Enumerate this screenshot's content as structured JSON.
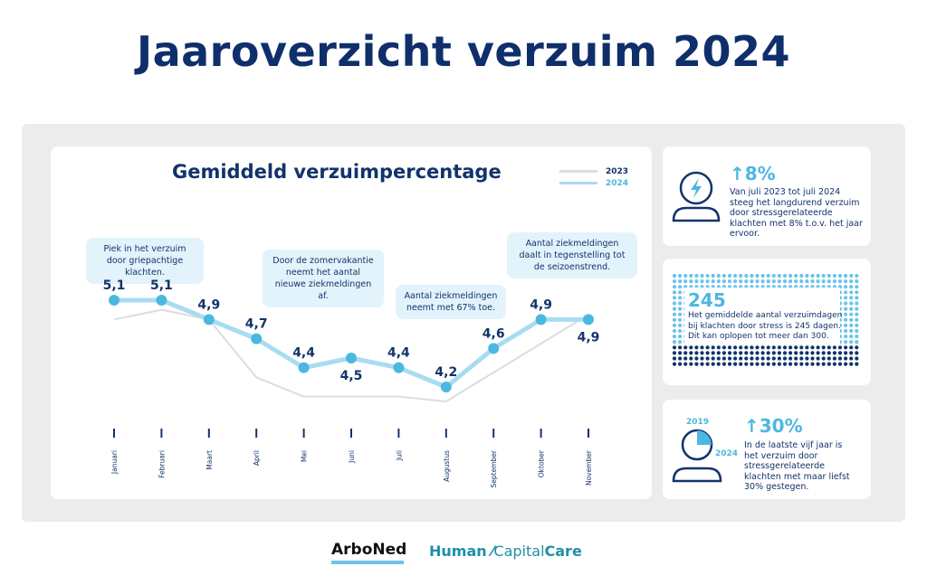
{
  "title": "Jaaroverzicht verzuim 2024",
  "chart_data": {
    "type": "line",
    "title": "Gemiddeld verzuimpercentage",
    "categories": [
      "Januari",
      "Februari",
      "Maart",
      "April",
      "Mei",
      "Juni",
      "Juli",
      "Augustus",
      "September",
      "Oktober",
      "November"
    ],
    "series": [
      {
        "name": "2023",
        "values": [
          4.9,
          5.0,
          4.9,
          4.3,
          4.1,
          4.1,
          4.1,
          4.05,
          4.35,
          4.65,
          4.95
        ],
        "color": "#dcdde3"
      },
      {
        "name": "2024",
        "values": [
          5.1,
          5.1,
          4.9,
          4.7,
          4.4,
          4.5,
          4.4,
          4.2,
          4.6,
          4.9,
          4.9
        ],
        "color": "#a9dcf2"
      }
    ],
    "value_labels": [
      "5,1",
      "5,1",
      "4,9",
      "4,7",
      "4,4",
      "4,5",
      "4,4",
      "4,2",
      "4,6",
      "4,9",
      "4,9"
    ],
    "ylim": [
      3.9,
      5.4
    ],
    "annotations": [
      "Piek in het verzuim door griepachtige klachten.",
      "Door de zomervakantie neemt het aantal nieuwe ziekmeldingen af.",
      "Aantal ziekmeldingen neemt met 67% toe.",
      "Aantal ziekmeldingen daalt in tegenstelling tot de seizoenstrend."
    ],
    "legend_position": "top-right"
  },
  "stats": [
    {
      "value": "8%",
      "text": "Van juli 2023 tot juli 2024 steeg het langdurend verzuim door stressgerelateerde klachten met 8% t.o.v. het jaar ervoor.",
      "icon": "stress-person-icon"
    },
    {
      "value": "245",
      "text": "Het gemiddelde aantal verzuimdagen bij klachten door stress is 245 dagen. Dit kan oplopen tot meer dan 300.",
      "icon": "dots-grid-icon"
    },
    {
      "value": "30%",
      "text": "In de laatste vijf jaar is het verzuim door stressgerelateerde klachten met maar liefst 30% gestegen.",
      "icon": "person-pie-icon",
      "year_start": "2019",
      "year_end": "2024"
    }
  ],
  "logos": {
    "arboned": "ArboNed",
    "hcc_human": "Human",
    "hcc_capital": "Capital",
    "hcc_care": "Care"
  },
  "colors": {
    "navy": "#12336b",
    "accent": "#4bb8e0",
    "line2024": "#a9dcf2",
    "line2023": "#dcdde3"
  }
}
